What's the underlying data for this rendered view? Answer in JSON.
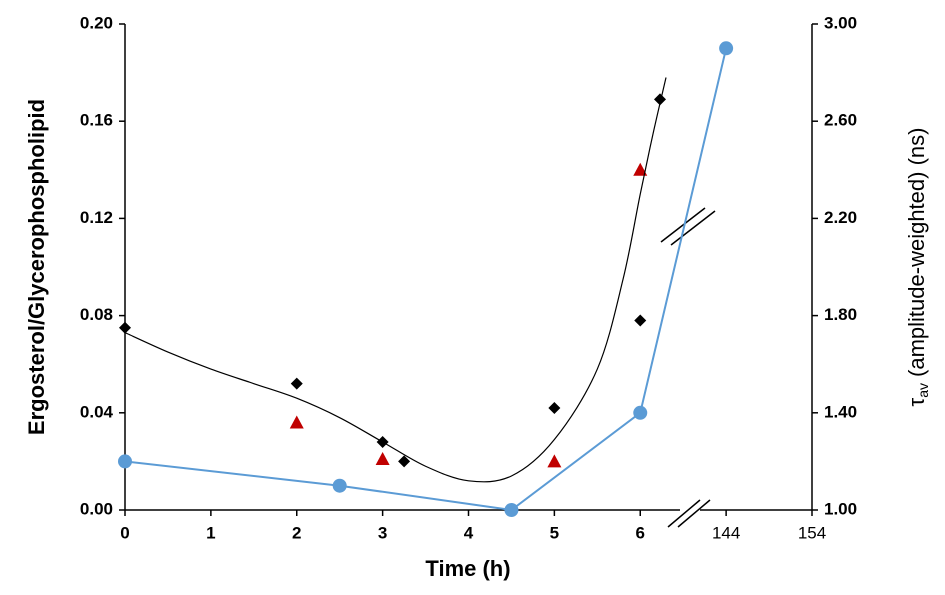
{
  "chart_data": {
    "type": "scatter",
    "xlabel": "Time (h)",
    "ylabel": "Ergosterol/Glycerophospholipid",
    "y2label": {
      "symbol": "τ",
      "subscript": "av",
      "text": "(amplitude-weighted) (ns)"
    },
    "xsegments": [
      [
        0,
        7
      ],
      [
        144,
        154
      ]
    ],
    "xticks": [
      0,
      1,
      2,
      3,
      4,
      5,
      6,
      144,
      154
    ],
    "ylim": [
      0,
      0.2
    ],
    "yticks": [
      {
        "value": 0,
        "label": "0.00"
      },
      {
        "value": 0.04,
        "label": "0.04"
      },
      {
        "value": 0.08,
        "label": "0.08"
      },
      {
        "value": 0.12,
        "label": "0.12"
      },
      {
        "value": 0.16,
        "label": "0.16"
      },
      {
        "value": 0.2,
        "label": "0.20"
      }
    ],
    "y2lim": [
      1,
      3
    ],
    "y2ticks": [
      {
        "value": 1,
        "label": "1.00"
      },
      {
        "value": 1.4,
        "label": "1.40"
      },
      {
        "value": 1.8,
        "label": "1.80"
      },
      {
        "value": 2.2,
        "label": "2.20"
      },
      {
        "value": 2.6,
        "label": "2.60"
      },
      {
        "value": 3,
        "label": "3.00"
      }
    ],
    "grid": false,
    "series": [
      {
        "color": "#000000",
        "marker": "diamond",
        "x": [
          0,
          2,
          3,
          3.25,
          5,
          6,
          6.23
        ],
        "values": [
          0.075,
          0.052,
          0.028,
          0.02,
          0.042,
          0.078,
          0.169
        ]
      },
      {
        "color": "#c00000",
        "marker": "triangle",
        "x": [
          2,
          3,
          5,
          6
        ],
        "values": [
          0.036,
          0.021,
          0.02,
          0.14
        ]
      },
      {
        "color": "#5b9bd5",
        "marker": "circle",
        "line": true,
        "axis": "y2",
        "x": [
          0,
          2.5,
          4.5,
          6,
          144
        ],
        "values": [
          1.2,
          1.1,
          1.0,
          1.4,
          2.9
        ]
      },
      {
        "color": "#000000",
        "marker": "none",
        "line": true,
        "smooth": true,
        "x": [
          0,
          0.5,
          1,
          1.5,
          2,
          2.5,
          3,
          3.5,
          4,
          4.5,
          5,
          5.5,
          5.8,
          6,
          6.15,
          6.3
        ],
        "values": [
          0.073,
          0.065,
          0.058,
          0.052,
          0.046,
          0.038,
          0.028,
          0.018,
          0.012,
          0.014,
          0.029,
          0.058,
          0.095,
          0.13,
          0.155,
          0.178
        ]
      }
    ]
  }
}
